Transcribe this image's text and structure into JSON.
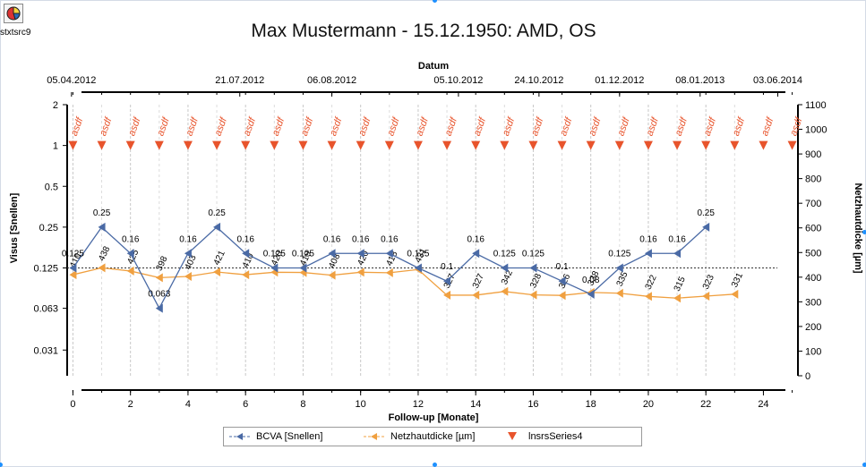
{
  "app": {
    "icon": "app-chart-icon",
    "label": "stxtsrc9"
  },
  "chart_data": {
    "type": "line",
    "title": "Max Mustermann - 15.12.1950: AMD, OS",
    "xlabel": "Follow-up [Monate]",
    "x_ticks": [
      "0",
      "2",
      "4",
      "6",
      "8",
      "10",
      "12",
      "14",
      "16",
      "18",
      "20",
      "22",
      "24"
    ],
    "xlim": [
      -0.2,
      25.2
    ],
    "top_axis": {
      "title": "Datum",
      "tick_labels": [
        "05.04.2012",
        "21.07.2012",
        "06.08.2012",
        "05.10.2012",
        "24.10.2012",
        "01.12.2012",
        "08.01.2013",
        "03.06.2014"
      ]
    },
    "ylabel_left": "Visus [Snellen]",
    "y_left_scale": "log",
    "y_left_ticks": [
      "2",
      "1",
      "0.5",
      "0.25",
      "0.125",
      "0.063",
      "0.031"
    ],
    "ylabel_right": "Netzhautdicke [µm]",
    "y_right_ticks": [
      "0",
      "100",
      "200",
      "300",
      "400",
      "500",
      "600",
      "700",
      "800",
      "900",
      "1000",
      "1100"
    ],
    "y_right_lim": [
      0,
      1100
    ],
    "reference_line": 0.125,
    "series": [
      {
        "name": "BCVA [Snellen]",
        "axis": "left",
        "color": "#4a6aa5",
        "x": [
          0,
          1,
          2,
          3,
          4,
          5,
          6,
          7,
          8,
          9,
          10,
          11,
          12,
          13,
          14,
          15,
          16,
          17,
          18,
          19,
          20,
          21,
          22
        ],
        "values": [
          0.125,
          0.25,
          0.16,
          0.063,
          0.16,
          0.25,
          0.16,
          0.125,
          0.125,
          0.16,
          0.16,
          0.16,
          0.125,
          0.1,
          0.16,
          0.125,
          0.125,
          0.1,
          0.08,
          0.125,
          0.16,
          0.16,
          0.25
        ],
        "labels": [
          "0.125",
          "0.25",
          "0.16",
          "0.063",
          "0.16",
          "0.25",
          "0.16",
          "0.125",
          "0.125",
          "0.16",
          "0.16",
          "0.16",
          "0.125",
          "0.1",
          "0.16",
          "0.125",
          "0.125",
          "0.1",
          "0.08",
          "0.125",
          "0.16",
          "0.16",
          "0.25"
        ]
      },
      {
        "name": "Netzhautdicke [µm]",
        "axis": "right",
        "color": "#f0a040",
        "x": [
          0,
          1,
          2,
          3,
          4,
          5,
          6,
          7,
          8,
          9,
          10,
          11,
          12,
          13,
          14,
          15,
          16,
          17,
          18,
          19,
          20,
          21,
          22,
          23
        ],
        "values": [
          410,
          438,
          425,
          398,
          403,
          421,
          410,
          420,
          419,
          408,
          420,
          418,
          431,
          327,
          327,
          342,
          328,
          326,
          338,
          335,
          322,
          315,
          323,
          331
        ],
        "labels": [
          "410",
          "438",
          "425",
          "398",
          "403",
          "421",
          "410",
          "420",
          "419",
          "408",
          "420",
          "418",
          "431",
          "327",
          "327",
          "342",
          "328",
          "326",
          "338",
          "335",
          "322",
          "315",
          "323",
          "331"
        ]
      },
      {
        "name": "lnsrsSeries4",
        "axis": "left",
        "color": "#e8542c",
        "marker": "triangle-down",
        "x": [
          0,
          1,
          2,
          3,
          4,
          5,
          6,
          7,
          8,
          9,
          10,
          11,
          12,
          13,
          14,
          15,
          16,
          17,
          18,
          19,
          20,
          21,
          22,
          23,
          24,
          25
        ],
        "values": [
          1,
          1,
          1,
          1,
          1,
          1,
          1,
          1,
          1,
          1,
          1,
          1,
          1,
          1,
          1,
          1,
          1,
          1,
          1,
          1,
          1,
          1,
          1,
          1,
          1,
          1
        ],
        "label": "asdf"
      }
    ],
    "legend_position": "bottom-center",
    "grid": "vertical-dashed"
  }
}
